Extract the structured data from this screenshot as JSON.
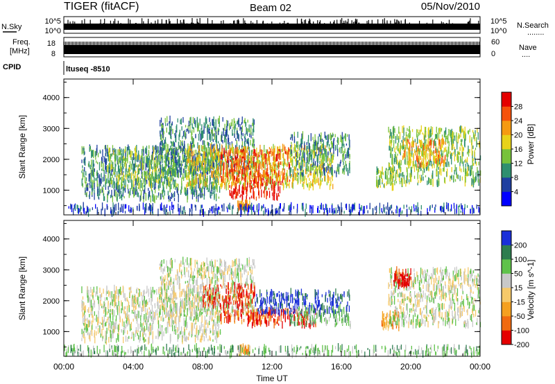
{
  "header": {
    "radar": "TIGER (fitACF)",
    "beam": "Beam 02",
    "date": "05/Nov/2010"
  },
  "nsky_panel": {
    "left_label": "N.Sky",
    "right_label": "N.Search",
    "right_marker": "........",
    "axis_top": "10^5",
    "axis_bottom": "10^0"
  },
  "freq_panel": {
    "left_label_1": "Freq.",
    "left_label_2": "[MHz]",
    "left_tick_top": "18",
    "left_tick_bottom": "8",
    "right_label": "Nave",
    "right_marker": "....",
    "right_tick_top": "60",
    "right_tick_bottom": "0"
  },
  "cpid_panel": {
    "label": "CPID",
    "value": "ltuseq -8510"
  },
  "chart_data": [
    {
      "type": "heatmap",
      "panel": "power",
      "title": "",
      "xlabel": "",
      "ylabel": "Slant Range [km]",
      "x_ticks": [
        "00:00",
        "04:00",
        "08:00",
        "12:00",
        "16:00",
        "20:00",
        "00:00"
      ],
      "x_hours": [
        0,
        4,
        8,
        12,
        16,
        20,
        24
      ],
      "y_ticks": [
        1000,
        2000,
        3000,
        4000
      ],
      "ylim": [
        200,
        4600
      ],
      "colorbar": {
        "label": "Power [dB]",
        "ticks": [
          "4",
          "8",
          "12",
          "16",
          "20",
          "24",
          "28"
        ],
        "colors": [
          "#0000ff",
          "#1f3fa0",
          "#2f8f6f",
          "#77c23a",
          "#e8d21a",
          "#f59a12",
          "#f5520c",
          "#e40000"
        ]
      },
      "regions": [
        {
          "t0": 1.0,
          "t1": 9.0,
          "r0": 700,
          "r1": 2400,
          "level": 2
        },
        {
          "t0": 2.5,
          "t1": 6.5,
          "r0": 1100,
          "r1": 2300,
          "level": 3
        },
        {
          "t0": 5.5,
          "t1": 11.0,
          "r0": 1500,
          "r1": 3300,
          "level": 2
        },
        {
          "t0": 7.0,
          "t1": 15.5,
          "r0": 1100,
          "r1": 2400,
          "level": 4
        },
        {
          "t0": 9.0,
          "t1": 13.0,
          "r0": 1300,
          "r1": 2300,
          "level": 6
        },
        {
          "t0": 9.5,
          "t1": 12.5,
          "r0": 700,
          "r1": 1300,
          "level": 7
        },
        {
          "t0": 10.0,
          "t1": 10.7,
          "r0": 400,
          "r1": 600,
          "level": 5
        },
        {
          "t0": 13.0,
          "t1": 16.5,
          "r0": 1500,
          "r1": 2800,
          "level": 2
        },
        {
          "t0": 18.0,
          "t1": 19.0,
          "r0": 1100,
          "r1": 1700,
          "level": 3
        },
        {
          "t0": 18.7,
          "t1": 24.0,
          "r0": 1200,
          "r1": 3000,
          "level": 3
        },
        {
          "t0": 19.5,
          "t1": 22.0,
          "r0": 1800,
          "r1": 2600,
          "level": 5
        },
        {
          "t0": 0.0,
          "t1": 24.0,
          "r0": 250,
          "r1": 500,
          "level": 1
        }
      ]
    },
    {
      "type": "heatmap",
      "panel": "velocity",
      "title": "",
      "xlabel": "Time UT",
      "ylabel": "Slant Range [km]",
      "x_ticks": [
        "00:00",
        "04:00",
        "08:00",
        "12:00",
        "16:00",
        "20:00",
        "00:00"
      ],
      "x_hours": [
        0,
        4,
        8,
        12,
        16,
        20,
        24
      ],
      "y_ticks": [
        1000,
        2000,
        3000,
        4000
      ],
      "ylim": [
        200,
        4600
      ],
      "colorbar": {
        "label": "Velocity [m s^-1]",
        "ticks": [
          "200",
          "100",
          "50",
          "15",
          "-15",
          "-50",
          "-100",
          "-200"
        ],
        "colors": [
          "#1a2fd8",
          "#2e7d4f",
          "#5fc24a",
          "#c8c8c8",
          "#f6c96a",
          "#f5a020",
          "#f06a10",
          "#e40000"
        ]
      },
      "regions": [
        {
          "t0": 1.0,
          "t1": 9.0,
          "r0": 700,
          "r1": 2400,
          "level": 3
        },
        {
          "t0": 5.5,
          "t1": 11.0,
          "r0": 1500,
          "r1": 3300,
          "level": 3
        },
        {
          "t0": 8.0,
          "t1": 11.0,
          "r0": 1800,
          "r1": 2500,
          "level": 7
        },
        {
          "t0": 9.0,
          "t1": 12.0,
          "r0": 1300,
          "r1": 1700,
          "level": 6
        },
        {
          "t0": 10.5,
          "t1": 14.5,
          "r0": 1200,
          "r1": 1700,
          "level": 7
        },
        {
          "t0": 11.0,
          "t1": 16.5,
          "r0": 1600,
          "r1": 2300,
          "level": 0
        },
        {
          "t0": 13.0,
          "t1": 16.5,
          "r0": 1200,
          "r1": 1800,
          "level": 2
        },
        {
          "t0": 10.0,
          "t1": 10.7,
          "r0": 300,
          "r1": 500,
          "level": 5
        },
        {
          "t0": 18.3,
          "t1": 19.3,
          "r0": 1100,
          "r1": 1600,
          "level": 5
        },
        {
          "t0": 18.7,
          "t1": 24.0,
          "r0": 1200,
          "r1": 3000,
          "level": 3
        },
        {
          "t0": 19.0,
          "t1": 20.0,
          "r0": 2500,
          "r1": 3000,
          "level": 7
        },
        {
          "t0": 0.0,
          "t1": 24.0,
          "r0": 250,
          "r1": 500,
          "level": 2
        }
      ]
    }
  ]
}
